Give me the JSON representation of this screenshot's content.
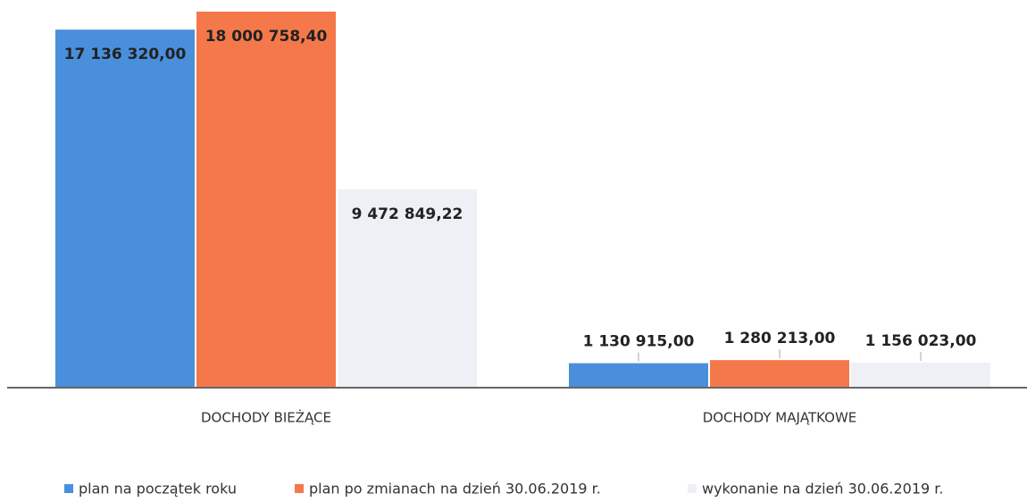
{
  "chart_data": {
    "type": "bar",
    "categories": [
      "DOCHODY BIEŻĄCE",
      "DOCHODY MAJĄTKOWE"
    ],
    "series": [
      {
        "name": "plan na początek roku",
        "color": "#4a8fdc",
        "values": [
          17136320.0,
          1130915.0
        ],
        "value_labels": [
          "17 136 320,00",
          "1 130 915,00"
        ]
      },
      {
        "name": "plan po zmianach na dzień 30.06.2019 r.",
        "color": "#f4784a",
        "values": [
          18000758.4,
          1280213.0
        ],
        "value_labels": [
          "18 000 758,40",
          "1 280 213,00"
        ]
      },
      {
        "name": "wykonanie na dzień 30.06.2019 r.",
        "color": "#eef0f6",
        "values": [
          9472849.22,
          1156023.0
        ],
        "value_labels": [
          "9 472 849,22",
          "1 156 023,00"
        ]
      }
    ],
    "legend": "bottom"
  }
}
